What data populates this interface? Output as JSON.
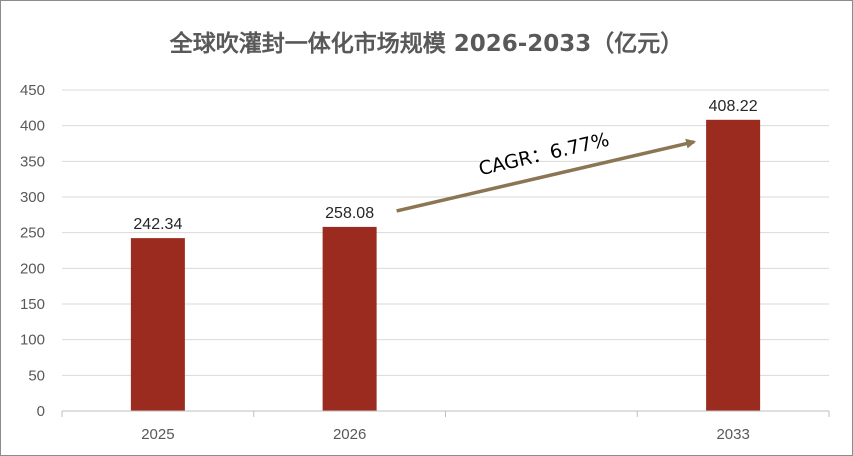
{
  "chart_data": {
    "type": "bar",
    "title": "全球吹灌封一体化市场规模 2026-2033（亿元）",
    "categories": [
      "2025",
      "2026",
      "",
      "2033"
    ],
    "values": [
      242.34,
      258.08,
      null,
      408.22
    ],
    "data_labels": [
      "242.34",
      "258.08",
      "",
      "408.22"
    ],
    "ylim": [
      0,
      450
    ],
    "yticks": [
      0,
      50,
      100,
      150,
      200,
      250,
      300,
      350,
      400,
      450
    ],
    "grid": true,
    "legend": "none",
    "bar_color": "#9b2a1f",
    "annotation": {
      "text": "CAGR：6.77%",
      "arrow_from_category": 1,
      "arrow_to_category": 3,
      "arrow_color": "#8b7653"
    }
  }
}
